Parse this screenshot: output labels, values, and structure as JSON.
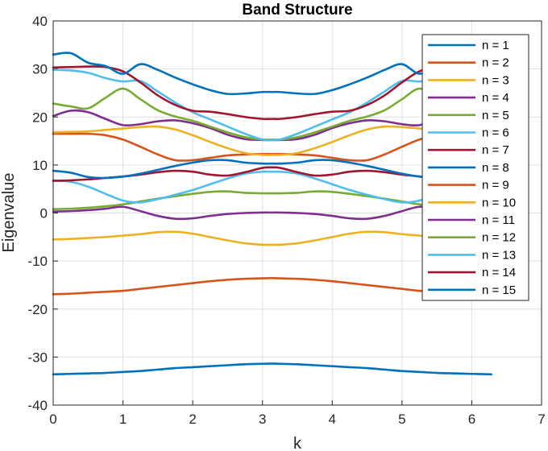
{
  "chart_data": {
    "type": "line",
    "title": "Band Structure",
    "xlabel": "k",
    "ylabel": "Eigenvalue",
    "xlim": [
      0,
      7
    ],
    "ylim": [
      -40,
      40
    ],
    "xticks": [
      "0",
      "1",
      "2",
      "3",
      "4",
      "5",
      "6",
      "7"
    ],
    "yticks": [
      "-40",
      "-30",
      "-20",
      "-10",
      "0",
      "10",
      "20",
      "30",
      "40"
    ],
    "grid": true,
    "legend_position": "top-right",
    "x": [
      0,
      0.25,
      0.5,
      0.75,
      1.0,
      1.25,
      1.5,
      1.75,
      2.0,
      2.25,
      2.5,
      2.75,
      3.0,
      3.14,
      3.25,
      3.5,
      3.75,
      4.0,
      4.25,
      4.5,
      4.75,
      5.0,
      5.25,
      5.5,
      5.75,
      6.0,
      6.28
    ],
    "series": [
      {
        "name": "n = 1",
        "color": "#0072BD",
        "values": [
          -33.6,
          -33.5,
          -33.4,
          -33.3,
          -33.1,
          -32.9,
          -32.6,
          -32.3,
          -32.1,
          -31.9,
          -31.7,
          -31.5,
          -31.4,
          -31.35,
          -31.4,
          -31.5,
          -31.7,
          -31.9,
          -32.1,
          -32.3,
          -32.6,
          -32.9,
          -33.1,
          -33.3,
          -33.4,
          -33.5,
          -33.6
        ]
      },
      {
        "name": "n = 2",
        "color": "#D95319",
        "values": [
          -16.9,
          -16.8,
          -16.6,
          -16.4,
          -16.2,
          -15.8,
          -15.4,
          -15.0,
          -14.6,
          -14.2,
          -13.9,
          -13.7,
          -13.6,
          -13.55,
          -13.6,
          -13.7,
          -13.9,
          -14.2,
          -14.6,
          -15.0,
          -15.4,
          -15.8,
          -16.2,
          -16.4,
          -16.6,
          -16.8,
          -16.9
        ]
      },
      {
        "name": "n = 3",
        "color": "#EDB120",
        "values": [
          -5.5,
          -5.4,
          -5.2,
          -5.0,
          -4.7,
          -4.4,
          -4.0,
          -3.9,
          -4.3,
          -5.0,
          -5.7,
          -6.3,
          -6.6,
          -6.6,
          -6.6,
          -6.3,
          -5.7,
          -5.0,
          -4.3,
          -3.9,
          -4.0,
          -4.4,
          -4.7,
          -5.0,
          -5.2,
          -5.4,
          -5.5
        ]
      },
      {
        "name": "n = 4",
        "color": "#7E2F8E",
        "values": [
          0.3,
          0.4,
          0.6,
          0.9,
          1.3,
          0.4,
          -0.6,
          -1.2,
          -1.1,
          -0.6,
          -0.2,
          0.0,
          0.1,
          0.1,
          0.1,
          0.0,
          -0.2,
          -0.6,
          -1.1,
          -1.2,
          -0.6,
          0.4,
          1.3,
          0.9,
          0.6,
          0.4,
          0.3
        ]
      },
      {
        "name": "n = 5",
        "color": "#77AC30",
        "values": [
          0.8,
          0.9,
          1.1,
          1.4,
          1.8,
          2.4,
          3.0,
          3.5,
          4.0,
          4.4,
          4.5,
          4.2,
          4.1,
          4.1,
          4.1,
          4.2,
          4.5,
          4.4,
          4.0,
          3.5,
          3.0,
          2.4,
          1.8,
          1.4,
          1.1,
          0.9,
          0.8
        ]
      },
      {
        "name": "n = 6",
        "color": "#4DBEEE",
        "values": [
          6.8,
          6.5,
          5.5,
          4.0,
          2.6,
          2.2,
          2.9,
          3.8,
          4.8,
          6.0,
          7.2,
          8.2,
          8.6,
          8.6,
          8.6,
          8.2,
          7.2,
          6.0,
          4.8,
          3.8,
          2.9,
          2.2,
          2.6,
          4.0,
          5.5,
          6.5,
          6.8
        ]
      },
      {
        "name": "n = 7",
        "color": "#A2142F",
        "values": [
          6.7,
          6.8,
          7.0,
          7.3,
          7.6,
          8.0,
          8.5,
          8.8,
          8.6,
          8.0,
          7.8,
          8.5,
          9.4,
          9.5,
          9.4,
          8.5,
          7.8,
          8.0,
          8.6,
          8.8,
          8.5,
          8.0,
          7.6,
          7.3,
          7.0,
          6.8,
          6.7
        ]
      },
      {
        "name": "n = 8",
        "color": "#0072BD",
        "values": [
          8.8,
          8.4,
          7.5,
          7.3,
          7.6,
          8.2,
          9.0,
          9.8,
          10.5,
          11.0,
          11.0,
          10.5,
          10.3,
          10.3,
          10.3,
          10.5,
          11.0,
          11.0,
          10.5,
          9.8,
          9.0,
          8.2,
          7.6,
          7.3,
          7.5,
          8.4,
          8.8
        ]
      },
      {
        "name": "n = 9",
        "color": "#D95319",
        "values": [
          16.5,
          16.5,
          16.5,
          16.2,
          15.3,
          13.8,
          12.2,
          11.0,
          11.0,
          11.5,
          12.0,
          12.2,
          12.3,
          12.3,
          12.3,
          12.2,
          12.0,
          11.5,
          11.0,
          11.0,
          12.2,
          13.8,
          15.3,
          16.2,
          16.5,
          16.5,
          16.5
        ]
      },
      {
        "name": "n = 10",
        "color": "#EDB120",
        "values": [
          16.8,
          16.9,
          17.0,
          17.3,
          17.6,
          17.9,
          18.0,
          17.4,
          16.2,
          14.8,
          13.5,
          12.5,
          12.1,
          12.1,
          12.1,
          12.5,
          13.5,
          14.8,
          16.2,
          17.4,
          18.0,
          17.9,
          17.6,
          17.3,
          17.0,
          16.9,
          16.8
        ]
      },
      {
        "name": "n = 11",
        "color": "#7E2F8E",
        "values": [
          20.2,
          21.3,
          21.0,
          19.6,
          18.3,
          18.5,
          19.1,
          19.3,
          18.7,
          17.7,
          16.3,
          15.4,
          15.2,
          15.2,
          15.2,
          15.4,
          16.3,
          17.7,
          18.7,
          19.3,
          19.1,
          18.5,
          18.3,
          19.6,
          21.0,
          21.3,
          20.2
        ]
      },
      {
        "name": "n = 12",
        "color": "#77AC30",
        "values": [
          22.8,
          22.2,
          21.8,
          24.0,
          25.9,
          23.7,
          21.4,
          20.1,
          19.2,
          18.0,
          16.8,
          15.8,
          15.3,
          15.3,
          15.3,
          15.8,
          16.8,
          18.0,
          19.2,
          20.1,
          21.4,
          23.7,
          25.9,
          24.0,
          21.8,
          22.2,
          22.8
        ]
      },
      {
        "name": "n = 13",
        "color": "#4DBEEE",
        "values": [
          29.8,
          29.7,
          29.2,
          28.1,
          27.4,
          27.5,
          25.3,
          23.0,
          21.0,
          19.5,
          18.0,
          16.5,
          15.3,
          15.2,
          15.3,
          16.5,
          18.0,
          19.5,
          21.0,
          23.0,
          25.3,
          27.5,
          27.4,
          28.1,
          29.2,
          29.7,
          29.8
        ]
      },
      {
        "name": "n = 14",
        "color": "#A2142F",
        "values": [
          30.3,
          30.4,
          30.5,
          30.4,
          29.5,
          27.2,
          24.5,
          22.5,
          21.3,
          21.1,
          20.6,
          20.0,
          19.6,
          19.6,
          19.6,
          20.0,
          20.6,
          21.1,
          21.3,
          22.5,
          24.5,
          27.2,
          29.5,
          30.4,
          30.5,
          30.4,
          30.3
        ]
      },
      {
        "name": "n = 15",
        "color": "#0072BD",
        "values": [
          33.0,
          33.3,
          31.3,
          30.6,
          29.0,
          31.0,
          29.8,
          28.2,
          26.8,
          25.6,
          24.8,
          24.9,
          25.2,
          25.2,
          25.2,
          24.9,
          24.8,
          25.6,
          26.8,
          28.2,
          29.8,
          31.0,
          29.0,
          30.6,
          31.3,
          33.3,
          33.0
        ]
      }
    ]
  }
}
